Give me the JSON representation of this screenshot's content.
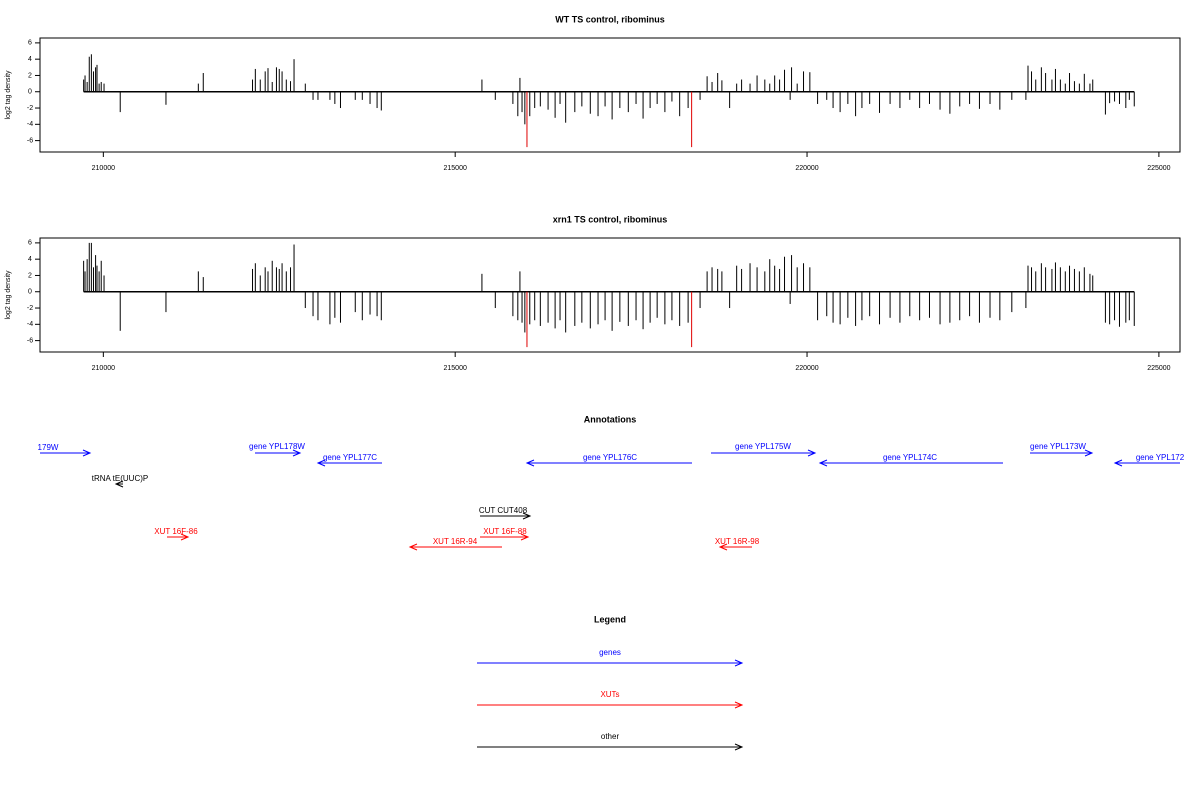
{
  "chart_data": [
    {
      "type": "bar",
      "title": "WT TS control, ribominus",
      "ylabel": "log2 tag density",
      "xlim": [
        209100,
        225300
      ],
      "xticks": [
        210000,
        215000,
        220000,
        225000
      ],
      "ylim": [
        -7.4,
        6.6
      ],
      "yticks": [
        -6,
        -4,
        -2,
        0,
        2,
        4,
        6
      ],
      "series": [
        {
          "color": "#000000",
          "x": [
            209720,
            209740,
            209770,
            209800,
            209830,
            209860,
            209890,
            209910,
            209940,
            209970,
            210010,
            210240,
            210890,
            211350,
            211420,
            212120,
            212160,
            212230,
            212300,
            212340,
            212400,
            212460,
            212500,
            212540,
            212600,
            212660,
            212710,
            212870,
            212980,
            213050,
            213220,
            213290,
            213370,
            213580,
            213680,
            213790,
            213890,
            213950,
            215380,
            215570,
            215820,
            215890,
            215920,
            215950,
            215990,
            216060,
            216130,
            216210,
            216320,
            216420,
            216490,
            216570,
            216700,
            216800,
            216920,
            217030,
            217130,
            217230,
            217340,
            217460,
            217570,
            217670,
            217770,
            217870,
            217980,
            218080,
            218190,
            218310,
            218480,
            218580,
            218650,
            218730,
            218790,
            218900,
            219000,
            219070,
            219190,
            219290,
            219400,
            219470,
            219540,
            219610,
            219680,
            219760,
            219780,
            219860,
            219950,
            220040,
            220150,
            220280,
            220370,
            220470,
            220580,
            220690,
            220780,
            220890,
            221030,
            221180,
            221320,
            221460,
            221600,
            221740,
            221890,
            222030,
            222170,
            222310,
            222450,
            222600,
            222740,
            222910,
            223110,
            223140,
            223190,
            223250,
            223330,
            223390,
            223480,
            223530,
            223600,
            223670,
            223730,
            223800,
            223870,
            223940,
            224020,
            224060,
            224240,
            224300,
            224370,
            224440,
            224530,
            224580,
            224650
          ],
          "values": [
            1.5,
            2,
            1.2,
            4.3,
            4.6,
            2.5,
            3,
            3.3,
            1,
            1.2,
            1,
            -2.5,
            -1.6,
            1,
            2.3,
            1.5,
            2.8,
            1.5,
            2.5,
            2.9,
            1.2,
            3,
            2.8,
            2.5,
            1.5,
            1.3,
            4,
            1,
            -1,
            -1,
            -1,
            -1.5,
            -2,
            -1,
            -1,
            -1.5,
            -2,
            -2.3,
            1.5,
            -1,
            -1.5,
            -3,
            1.7,
            -2.5,
            -4,
            -3,
            -2,
            -1.8,
            -2.2,
            -3.2,
            -1.5,
            -3.8,
            -2.5,
            -1.8,
            -2.7,
            -3,
            -1.8,
            -3.4,
            -2,
            -2.5,
            -1.5,
            -3.3,
            -2,
            -1.5,
            -2.5,
            -1.2,
            -3,
            -2,
            -1,
            1.9,
            1.2,
            2.3,
            1.4,
            -2,
            1,
            1.5,
            1,
            2,
            1.5,
            1,
            2,
            1.5,
            2.7,
            -1,
            3,
            1,
            2.5,
            2.4,
            -1.5,
            -1,
            -2,
            -2.5,
            -1.5,
            -3,
            -2,
            -1.5,
            -2.6,
            -1.5,
            -2,
            -1,
            -2,
            -1.5,
            -2.2,
            -2.7,
            -1.8,
            -1.5,
            -2.1,
            -1.5,
            -2.2,
            -1,
            -1,
            3.2,
            2.5,
            1.5,
            3,
            2.3,
            1.5,
            2.8,
            1.5,
            1,
            2.3,
            1.3,
            1,
            2.2,
            1,
            1.5,
            -2.8,
            -1.4,
            -1.2,
            -1.5,
            -2,
            -1,
            -1.8
          ]
        },
        {
          "color": "#e00000",
          "x": [
            216020,
            218360
          ],
          "values": [
            -6.8,
            -6.8
          ]
        }
      ]
    },
    {
      "type": "bar",
      "title": "xrn1 TS control, ribominus",
      "ylabel": "log2 tag density",
      "xlim": [
        209100,
        225300
      ],
      "xticks": [
        210000,
        215000,
        220000,
        225000
      ],
      "ylim": [
        -7.4,
        6.6
      ],
      "yticks": [
        -6,
        -4,
        -2,
        0,
        2,
        4,
        6
      ],
      "series": [
        {
          "color": "#000000",
          "x": [
            209720,
            209740,
            209770,
            209800,
            209830,
            209860,
            209890,
            209910,
            209940,
            209970,
            210010,
            210240,
            210890,
            211350,
            211420,
            212120,
            212160,
            212230,
            212300,
            212340,
            212400,
            212460,
            212500,
            212540,
            212600,
            212660,
            212710,
            212870,
            212980,
            213050,
            213220,
            213290,
            213370,
            213580,
            213680,
            213790,
            213890,
            213950,
            215380,
            215570,
            215820,
            215890,
            215920,
            215950,
            215990,
            216060,
            216130,
            216210,
            216320,
            216420,
            216490,
            216570,
            216700,
            216800,
            216920,
            217030,
            217130,
            217230,
            217340,
            217460,
            217570,
            217670,
            217770,
            217870,
            217980,
            218080,
            218190,
            218310,
            218480,
            218580,
            218650,
            218730,
            218790,
            218900,
            219000,
            219070,
            219190,
            219290,
            219400,
            219470,
            219540,
            219610,
            219680,
            219760,
            219780,
            219860,
            219950,
            220040,
            220150,
            220280,
            220370,
            220470,
            220580,
            220690,
            220780,
            220890,
            221030,
            221180,
            221320,
            221460,
            221600,
            221740,
            221890,
            222030,
            222170,
            222310,
            222450,
            222600,
            222740,
            222910,
            223110,
            223140,
            223190,
            223250,
            223330,
            223390,
            223480,
            223530,
            223600,
            223670,
            223730,
            223800,
            223870,
            223940,
            224020,
            224060,
            224240,
            224300,
            224370,
            224440,
            224530,
            224580,
            224650
          ],
          "values": [
            3.8,
            2.5,
            4,
            6,
            6,
            3,
            4.5,
            3.2,
            2.5,
            3.8,
            2,
            -4.8,
            -2.5,
            2.5,
            1.8,
            2.8,
            3.5,
            2,
            3,
            2.5,
            3.8,
            3,
            2.8,
            3.5,
            2.5,
            3,
            5.8,
            -2,
            -3,
            -3.5,
            -4,
            -3.2,
            -3.8,
            -2.5,
            -3.5,
            -2.8,
            -3,
            -3.5,
            2.2,
            -2,
            -3,
            -3.5,
            2.5,
            -3.8,
            -5,
            -4,
            -3.5,
            -4.2,
            -3.8,
            -4.5,
            -3.5,
            -5,
            -4.2,
            -3.8,
            -4.5,
            -4,
            -3.5,
            -4.8,
            -3.7,
            -4.2,
            -3.5,
            -4.6,
            -3.8,
            -3.2,
            -4,
            -3.5,
            -4.2,
            -3.8,
            -2,
            2.5,
            3,
            2.8,
            2.5,
            -2,
            3.2,
            2.8,
            3.5,
            3,
            2.5,
            4,
            3.2,
            2.8,
            4.3,
            -1.5,
            4.5,
            3,
            3.5,
            3,
            -3.5,
            -3,
            -3.8,
            -4,
            -3.2,
            -4.2,
            -3.5,
            -3,
            -4,
            -3.2,
            -3.8,
            -3,
            -3.5,
            -3.2,
            -4,
            -3.8,
            -3.5,
            -3,
            -3.8,
            -3.2,
            -3.5,
            -2.5,
            -2,
            3.2,
            3,
            2.5,
            3.5,
            3,
            2.8,
            3.6,
            3,
            2.5,
            3.2,
            2.8,
            2.5,
            3,
            2.2,
            2,
            -3.8,
            -4,
            -3.5,
            -4.3,
            -3.8,
            -3.5,
            -4.2
          ]
        },
        {
          "color": "#e00000",
          "x": [
            216020,
            218360
          ],
          "values": [
            -6.8,
            -6.8
          ]
        }
      ]
    }
  ],
  "annotations": {
    "title": "Annotations",
    "features": [
      {
        "label": "179W",
        "color": "#0000ff"
      },
      {
        "label": "gene YPL178W",
        "color": "#0000ff"
      },
      {
        "label": "gene YPL177C",
        "color": "#0000ff"
      },
      {
        "label": "gene YPL176C",
        "color": "#0000ff"
      },
      {
        "label": "gene YPL175W",
        "color": "#0000ff"
      },
      {
        "label": "gene YPL174C",
        "color": "#0000ff"
      },
      {
        "label": "gene YPL173W",
        "color": "#0000ff"
      },
      {
        "label": "gene YPL172",
        "color": "#0000ff"
      },
      {
        "label": "tRNA tE(UUC)P",
        "color": "#000000"
      },
      {
        "label": "CUT CUT408",
        "color": "#000000"
      },
      {
        "label": "XUT 16F-86",
        "color": "#ff0000"
      },
      {
        "label": "XUT 16F-88",
        "color": "#ff0000"
      },
      {
        "label": "XUT 16R-94",
        "color": "#ff0000"
      },
      {
        "label": "XUT 16R-98",
        "color": "#ff0000"
      }
    ]
  },
  "legend": {
    "title": "Legend",
    "items": [
      {
        "label": "genes",
        "color": "#0000ff"
      },
      {
        "label": "XUTs",
        "color": "#ff0000"
      },
      {
        "label": "other",
        "color": "#000000"
      }
    ]
  }
}
